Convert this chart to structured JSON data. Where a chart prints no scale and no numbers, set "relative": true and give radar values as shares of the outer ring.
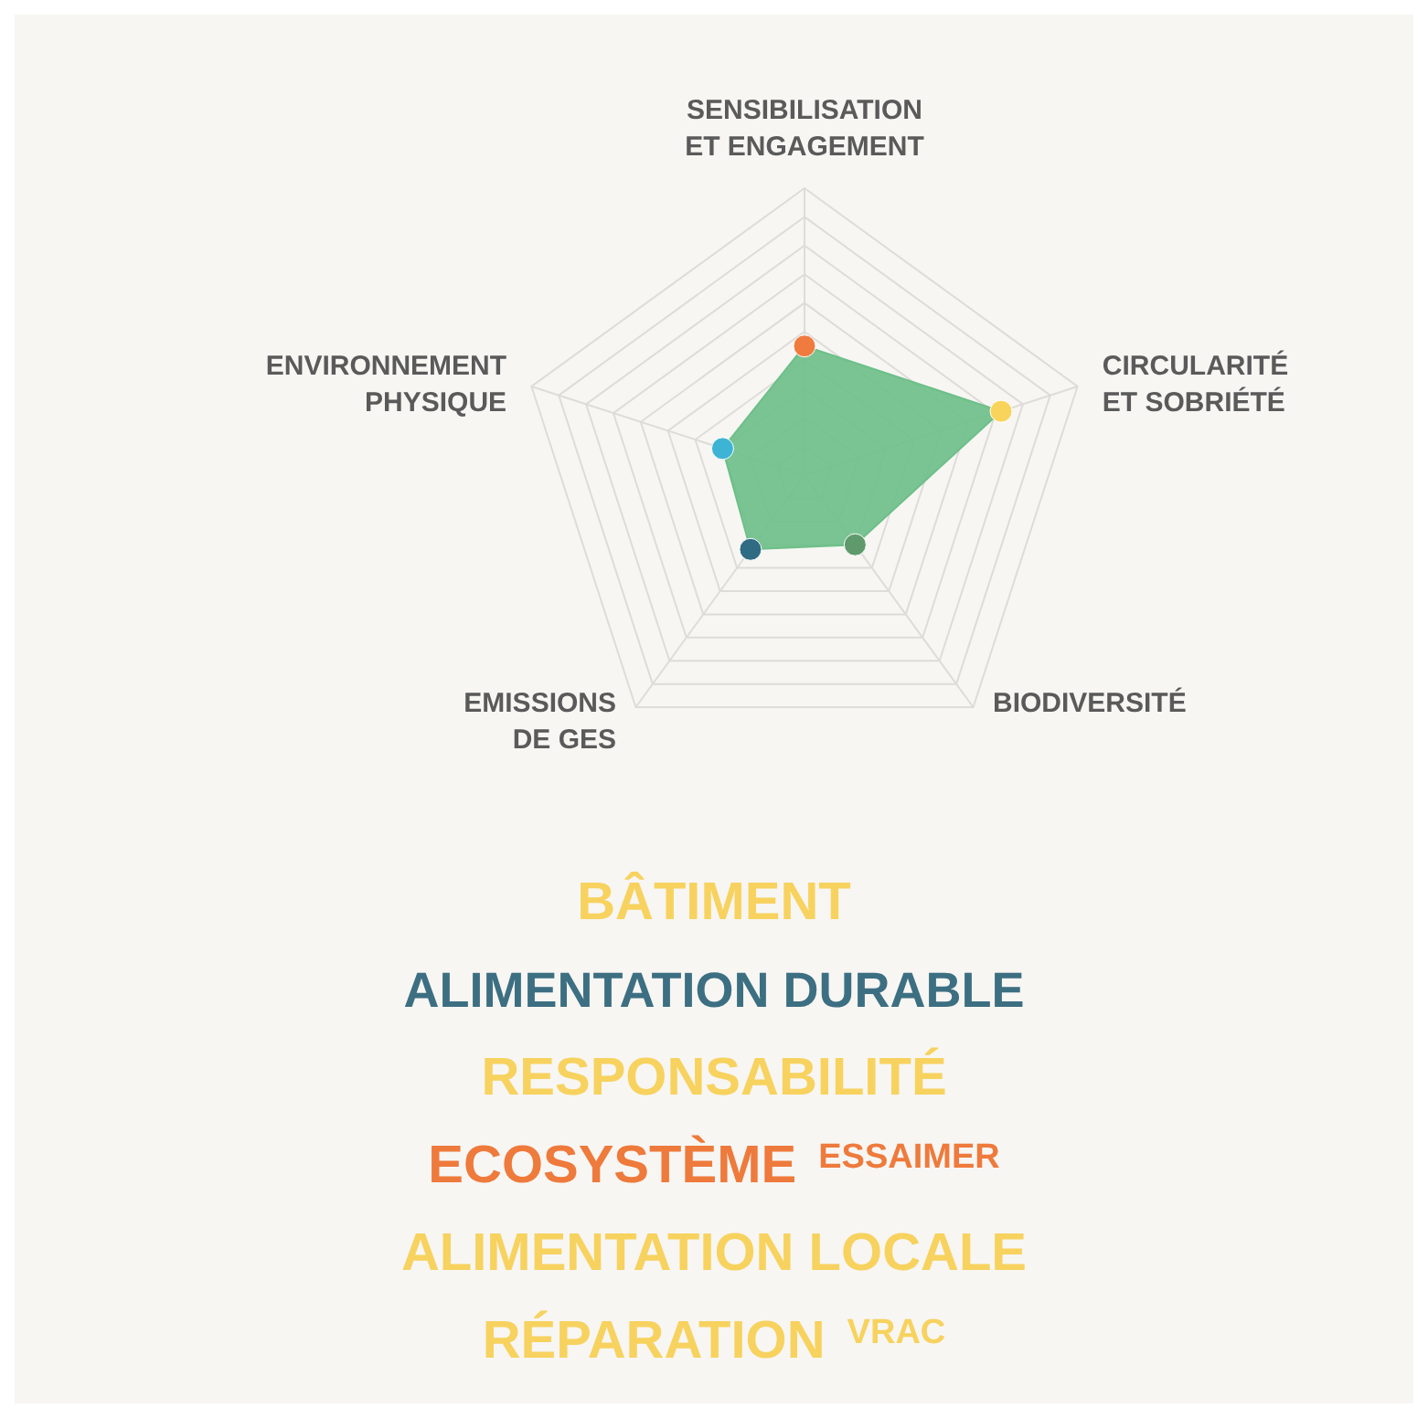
{
  "chart_data": {
    "type": "radar",
    "relative": true,
    "categories": [
      "SENSIBILISATION ET ENGAGEMENT",
      "CIRCULARITÉ ET SOBRIÉTÉ",
      "BIODIVERSITÉ",
      "EMISSIONS DE GES",
      "ENVIRONNEMENT PHYSIQUE"
    ],
    "series": [
      {
        "color": "#6cbf88",
        "values": [
          0.45,
          0.72,
          0.3,
          0.32,
          0.3
        ]
      }
    ],
    "colors": [
      "#f07b3f",
      "#f9d45c",
      "#5e9a6c",
      "#2f6b82",
      "#3db4d3"
    ],
    "marker": "circle",
    "grid": true,
    "annotations": [
      "BÂTIMENT",
      "ALIMENTATION DURABLE",
      "RESPONSABILITÉ",
      "ECOSYSTÈME",
      "ESSAIMER",
      "ALIMENTATION LOCALE",
      "RÉPARATION",
      "VRAC"
    ]
  }
}
